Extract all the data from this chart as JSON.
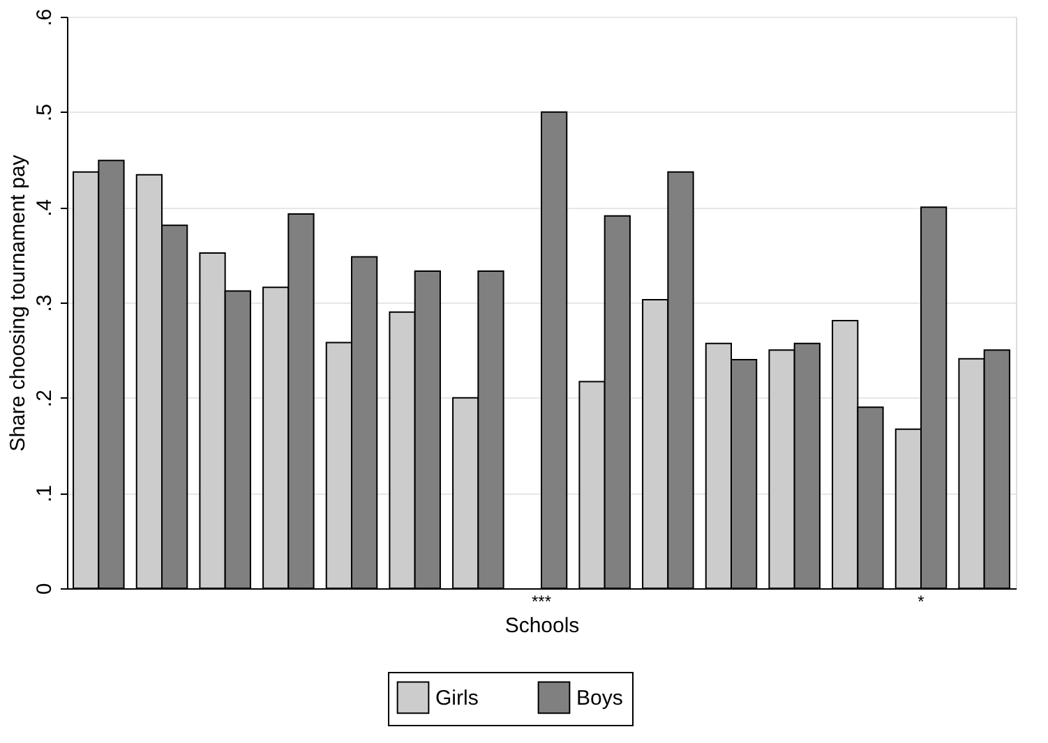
{
  "chart_data": {
    "type": "bar",
    "xlabel": "Schools",
    "ylabel": "Share choosing tournament pay",
    "categories": [
      null,
      null,
      null,
      null,
      null,
      null,
      null,
      "***",
      null,
      null,
      null,
      null,
      null,
      "*",
      null
    ],
    "series": [
      {
        "name": "Girls",
        "color": "#cccccc",
        "values": [
          0.437,
          0.434,
          0.352,
          0.316,
          0.258,
          0.29,
          0.2,
          null,
          0.217,
          0.303,
          0.257,
          0.25,
          0.281,
          0.167,
          0.241
        ]
      },
      {
        "name": "Boys",
        "color": "#808080",
        "values": [
          0.449,
          0.381,
          0.312,
          0.393,
          0.348,
          0.333,
          0.333,
          0.5,
          0.391,
          0.437,
          0.24,
          0.257,
          0.19,
          0.4,
          0.25
        ]
      }
    ],
    "ylim": [
      0,
      0.6
    ],
    "yticks": [
      {
        "value": 0,
        "label": "0"
      },
      {
        "value": 0.1,
        "label": ".1"
      },
      {
        "value": 0.2,
        "label": ".2"
      },
      {
        "value": 0.3,
        "label": ".3"
      },
      {
        "value": 0.4,
        "label": ".4"
      },
      {
        "value": 0.5,
        "label": ".5"
      },
      {
        "value": 0.6,
        "label": ".6"
      }
    ],
    "grid": "y",
    "legend": "bottom"
  }
}
